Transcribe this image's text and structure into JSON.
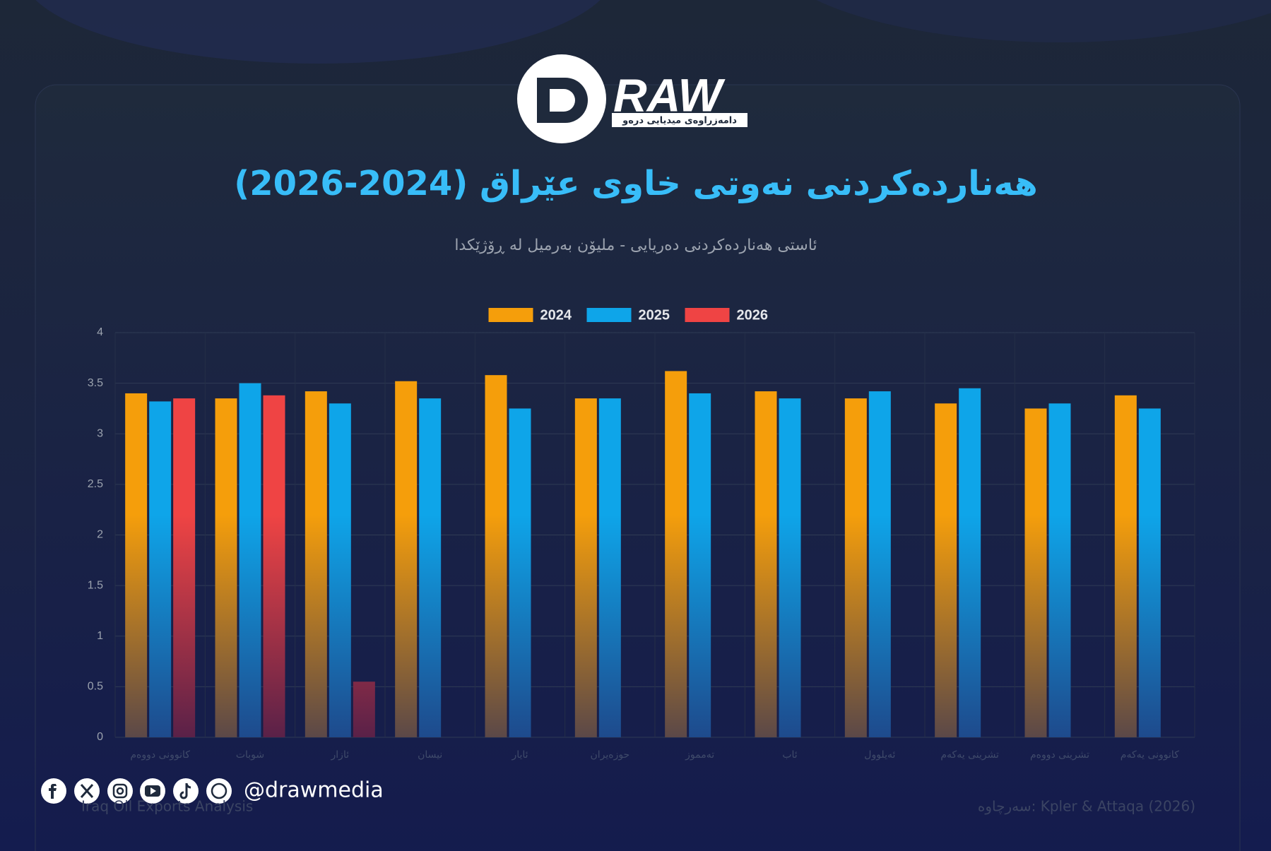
{
  "logo": {
    "wordmark": "RAW",
    "tagline": "دامەزراوەی میدیایی درەو"
  },
  "chart_data": {
    "type": "bar",
    "title": "هەناردەکردنی نەوتی خاوی عێراق (2024-2026)",
    "subtitle": "ئاستی هەناردەکردنی دەریایی - ملیۆن بەرمیل لە ڕۆژێکدا",
    "categories": [
      "کانوونی دووەم",
      "شوبات",
      "ئازار",
      "نیسان",
      "ئایار",
      "حوزەیران",
      "تەمموز",
      "ئاب",
      "ئەیلوول",
      "تشرینی یەکەم",
      "تشرینی دووەم",
      "کانوونی یەکەم"
    ],
    "series": [
      {
        "name": "2024",
        "color": "#f59e0b",
        "values": [
          3.4,
          3.35,
          3.42,
          3.52,
          3.58,
          3.35,
          3.62,
          3.42,
          3.35,
          3.3,
          3.25,
          3.38
        ]
      },
      {
        "name": "2025",
        "color": "#0ea5e9",
        "values": [
          3.32,
          3.5,
          3.3,
          3.35,
          3.25,
          3.35,
          3.4,
          3.35,
          3.42,
          3.45,
          3.3,
          3.25
        ]
      },
      {
        "name": "2026",
        "color": "#ef4444",
        "values": [
          3.35,
          3.38,
          0.55,
          null,
          null,
          null,
          null,
          null,
          null,
          null,
          null,
          null
        ]
      }
    ],
    "ylim": [
      0,
      4
    ],
    "yticks": [
      0,
      0.5,
      1,
      1.5,
      2,
      2.5,
      3,
      3.5,
      4
    ],
    "grid": true,
    "legend": "top"
  },
  "footer": {
    "handle": "@drawmedia",
    "note": "Iraq Oil Exports Analysis",
    "source": "سەرچاوە: Kpler & Attaqa (2026)"
  }
}
